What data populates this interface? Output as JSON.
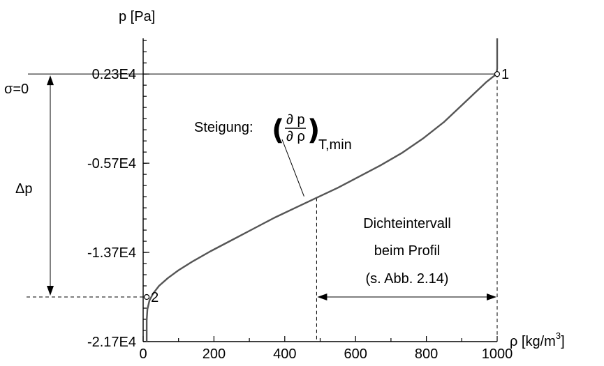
{
  "chart_data": {
    "type": "line",
    "ylabel": "p [Pa]",
    "xlabel": "ρ [kg/m",
    "xlabel_sup": "3",
    "xlabel_close": "]",
    "xlim": [
      0,
      1000
    ],
    "ylim": [
      -21700,
      5500
    ],
    "xticks": [
      0,
      200,
      400,
      600,
      800,
      1000
    ],
    "xtick_labels": [
      "0",
      "200",
      "400",
      "600",
      "800",
      "1000"
    ],
    "yticks": [
      2300,
      -5700,
      -13700,
      -21700
    ],
    "ytick_labels": [
      "0.23E4",
      "-0.57E4",
      "-1.37E4",
      "-2.17E4"
    ],
    "series": [
      {
        "color": "#555555",
        "x": [
          10,
          10,
          10,
          12,
          18,
          28,
          45,
          70,
          100,
          140,
          190,
          250,
          310,
          370,
          430,
          490,
          550,
          610,
          670,
          730,
          790,
          850,
          900,
          940,
          970,
          990,
          998,
          1000,
          1000,
          1000,
          1000
        ],
        "y": [
          -21700,
          -20500,
          -19800,
          -18800,
          -18000,
          -17400,
          -16700,
          -16000,
          -15300,
          -14500,
          -13600,
          -12600,
          -11600,
          -10600,
          -9700,
          -8800,
          -7900,
          -6900,
          -5900,
          -4800,
          -3500,
          -2000,
          -500,
          700,
          1600,
          2100,
          2300,
          2800,
          3500,
          4500,
          5500
        ]
      }
    ],
    "points": [
      {
        "label": "1",
        "x": 1000,
        "y": 2300
      },
      {
        "label": "2",
        "x": 10,
        "y": -17700
      }
    ],
    "grid": false,
    "annotations": {
      "sigma_label": "σ=0",
      "delta_p_label": "Δp",
      "slope_prefix": "Steigung:",
      "slope_num": "∂ p",
      "slope_den": "∂ ρ",
      "slope_sub": "T,min",
      "slope_point": {
        "x": 490,
        "y": -8800
      },
      "interval_lines": [
        "Dichteintervall",
        "beim Profil",
        "(s. Abb. 2.14)"
      ],
      "interval_range": [
        490,
        1000
      ]
    }
  }
}
